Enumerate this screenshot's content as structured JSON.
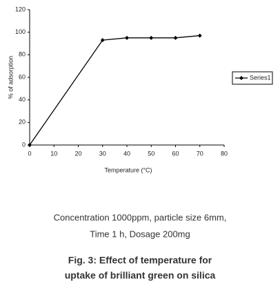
{
  "chart_data": {
    "type": "line",
    "x_label": "Temperature (°C)",
    "y_label": "% of adsorption",
    "x": [
      0,
      30,
      40,
      50,
      60,
      70
    ],
    "series": [
      {
        "name": "Series1",
        "color": "#000000",
        "values": [
          0,
          93,
          95,
          95,
          95,
          97
        ]
      }
    ],
    "xlim": [
      0,
      80
    ],
    "xticks": [
      0,
      10,
      20,
      30,
      40,
      50,
      60,
      70,
      80
    ],
    "ylim": [
      0,
      120
    ],
    "yticks": [
      0,
      20,
      40,
      60,
      80,
      100,
      120
    ],
    "legend": "right"
  },
  "caption": [
    "Concentration 1000ppm, particle size 6mm,",
    "Time 1 h, Dosage 200mg"
  ],
  "figure_title": [
    "Fig. 3:  Effect of temperature for",
    "uptake of brilliant green on silica"
  ]
}
